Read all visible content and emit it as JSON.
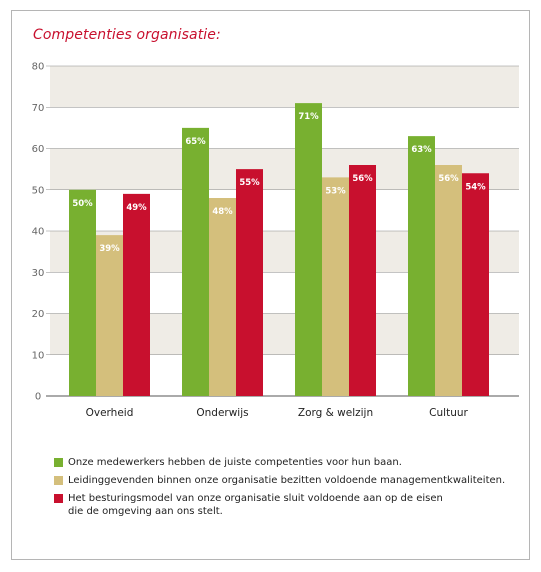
{
  "chart_data": {
    "type": "bar",
    "title": "Competenties organisatie:",
    "categories": [
      "Overheid",
      "Onderwijs",
      "Zorg & welzijn",
      "Cultuur"
    ],
    "ylim": [
      0,
      80
    ],
    "yticks": [
      0,
      10,
      20,
      30,
      40,
      50,
      60,
      70,
      80
    ],
    "grid": "alternating horizontal bands",
    "legend_position": "bottom",
    "series": [
      {
        "name": "Onze medewerkers hebben de juiste competenties voor hun baan.",
        "values": [
          50,
          65,
          71,
          63
        ],
        "labels": [
          "50%",
          "65%",
          "71%",
          "63%"
        ],
        "color": "#78b030"
      },
      {
        "name": "Leidinggevenden binnen onze organisatie bezitten voldoende managementkwaliteiten.",
        "values": [
          39,
          48,
          53,
          56
        ],
        "labels": [
          "39%",
          "48%",
          "53%",
          "56%"
        ],
        "color": "#d4bf7c"
      },
      {
        "name": "Het besturingsmodel van onze organisatie sluit voldoende aan op de eisen\ndie de omgeving aan ons stelt.",
        "values": [
          49,
          55,
          56,
          54
        ],
        "labels": [
          "49%",
          "55%",
          "56%",
          "54%"
        ],
        "color": "#c8102e"
      }
    ]
  }
}
